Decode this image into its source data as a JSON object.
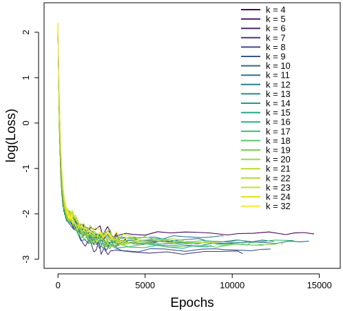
{
  "chart_data": {
    "type": "line",
    "title": "",
    "xlabel": "Epochs",
    "ylabel": "log(Loss)",
    "xlim": [
      -800,
      16200
    ],
    "ylim": [
      -3.2,
      2.65
    ],
    "xticks": [
      0,
      5000,
      10000,
      15000
    ],
    "xtick_labels": [
      "0",
      "5000",
      "10000",
      "15000"
    ],
    "yticks": [
      -3,
      -2,
      -1,
      0,
      1,
      2
    ],
    "ytick_labels": [
      "-3",
      "-2",
      "-1",
      "0",
      "1",
      "2"
    ],
    "grid": false,
    "legend_position": "top-right",
    "series": [
      {
        "name": "k = 4",
        "color": "#440154",
        "end_x": 14700,
        "final": -2.43,
        "knee": 600,
        "tail_scale": 1.0
      },
      {
        "name": "k = 5",
        "color": "#471365",
        "end_x": 4200,
        "final": -2.6,
        "knee": 700,
        "tail_scale": 1.3
      },
      {
        "name": "k = 6",
        "color": "#48256f",
        "end_x": 2600,
        "final": -2.55,
        "knee": 650,
        "tail_scale": 1.1
      },
      {
        "name": "k = 7",
        "color": "#453781",
        "end_x": 10600,
        "final": -2.85,
        "knee": 750,
        "tail_scale": 1.0
      },
      {
        "name": "k = 8",
        "color": "#3f4788",
        "end_x": 5600,
        "final": -2.65,
        "knee": 600,
        "tail_scale": 1.0
      },
      {
        "name": "k = 9",
        "color": "#39568c",
        "end_x": 12200,
        "final": -2.8,
        "knee": 700,
        "tail_scale": 0.9
      },
      {
        "name": "k = 10",
        "color": "#32648e",
        "end_x": 14400,
        "final": -2.62,
        "knee": 650,
        "tail_scale": 0.9
      },
      {
        "name": "k = 11",
        "color": "#2d718e",
        "end_x": 12400,
        "final": -2.58,
        "knee": 700,
        "tail_scale": 0.9
      },
      {
        "name": "k = 12",
        "color": "#287d8e",
        "end_x": 9500,
        "final": -2.52,
        "knee": 650,
        "tail_scale": 1.0
      },
      {
        "name": "k = 13",
        "color": "#238a8d",
        "end_x": 7700,
        "final": -2.64,
        "knee": 700,
        "tail_scale": 1.0
      },
      {
        "name": "k = 14",
        "color": "#1f968b",
        "end_x": 11000,
        "final": -2.68,
        "knee": 750,
        "tail_scale": 0.9
      },
      {
        "name": "k = 15",
        "color": "#20a386",
        "end_x": 6200,
        "final": -2.57,
        "knee": 650,
        "tail_scale": 1.0
      },
      {
        "name": "k = 16",
        "color": "#29af7f",
        "end_x": 8800,
        "final": -2.72,
        "knee": 700,
        "tail_scale": 1.0
      },
      {
        "name": "k = 17",
        "color": "#3dbc74",
        "end_x": 13600,
        "final": -2.6,
        "knee": 700,
        "tail_scale": 0.9
      },
      {
        "name": "k = 18",
        "color": "#56c667",
        "end_x": 11800,
        "final": -2.7,
        "knee": 750,
        "tail_scale": 0.9
      },
      {
        "name": "k = 19",
        "color": "#75d054",
        "end_x": 12900,
        "final": -2.66,
        "knee": 700,
        "tail_scale": 0.9
      },
      {
        "name": "k = 20",
        "color": "#95d840",
        "end_x": 7200,
        "final": -2.55,
        "knee": 800,
        "tail_scale": 1.0
      },
      {
        "name": "k = 21",
        "color": "#b8de29",
        "end_x": 9200,
        "final": -2.62,
        "knee": 800,
        "tail_scale": 1.0
      },
      {
        "name": "k = 22",
        "color": "#a8db34",
        "end_x": 5100,
        "final": -2.5,
        "knee": 850,
        "tail_scale": 1.1
      },
      {
        "name": "k = 23",
        "color": "#c5e021",
        "end_x": 4600,
        "final": -2.68,
        "knee": 850,
        "tail_scale": 1.1
      },
      {
        "name": "k = 24",
        "color": "#dde318",
        "end_x": 6400,
        "final": -2.58,
        "knee": 900,
        "tail_scale": 1.0
      },
      {
        "name": "k = 32",
        "color": "#fde725",
        "end_x": 4200,
        "final": -2.52,
        "knee": 900,
        "tail_scale": 1.1
      }
    ],
    "start_value": 2.2
  }
}
